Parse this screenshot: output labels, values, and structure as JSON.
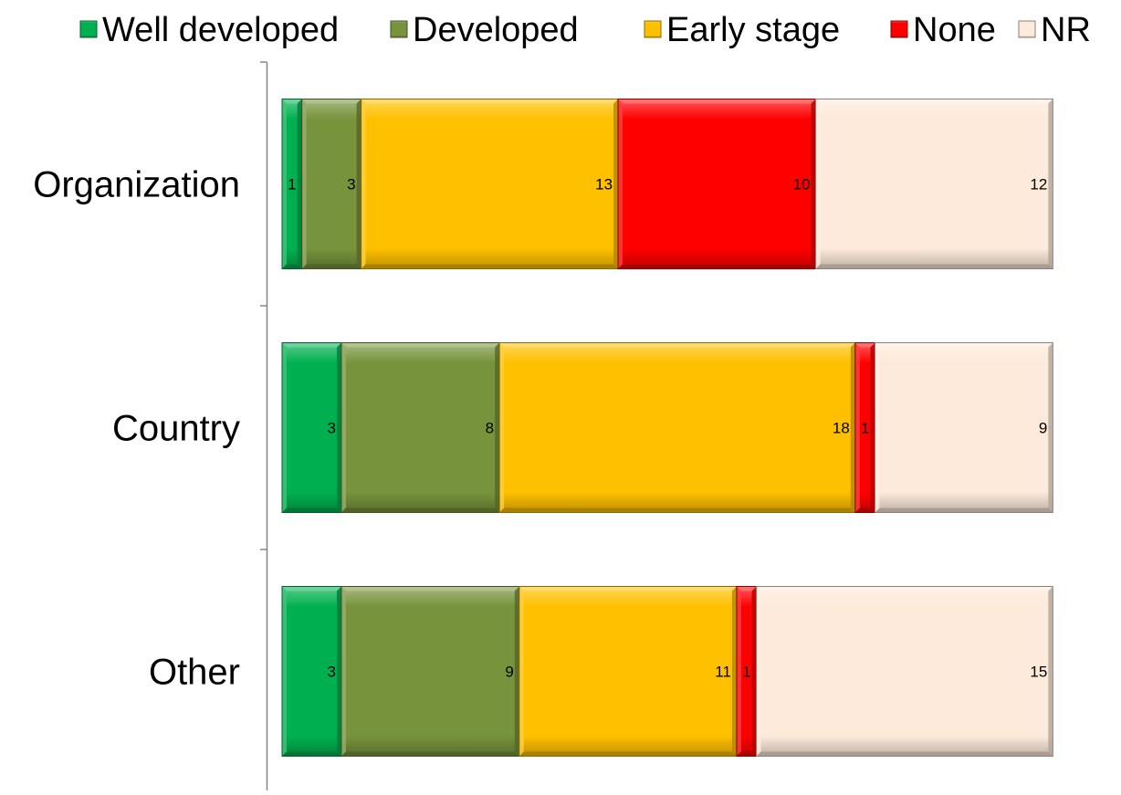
{
  "chart_data": {
    "type": "bar",
    "orientation": "horizontal",
    "stacked": true,
    "categories": [
      "Organization",
      "Country",
      "Other"
    ],
    "series": [
      {
        "name": "Well developed",
        "color": "#00B050",
        "values": [
          1,
          3,
          3
        ]
      },
      {
        "name": "Developed",
        "color": "#77933C",
        "values": [
          3,
          8,
          9
        ]
      },
      {
        "name": "Early stage",
        "color": "#FFC000",
        "values": [
          13,
          18,
          11
        ]
      },
      {
        "name": "None",
        "color": "#FF0000",
        "values": [
          10,
          1,
          1
        ]
      },
      {
        "name": "NR",
        "color": "#FDEADA",
        "values": [
          12,
          9,
          15
        ]
      }
    ],
    "legend_position": "top",
    "grid": false,
    "data_labels": true
  }
}
